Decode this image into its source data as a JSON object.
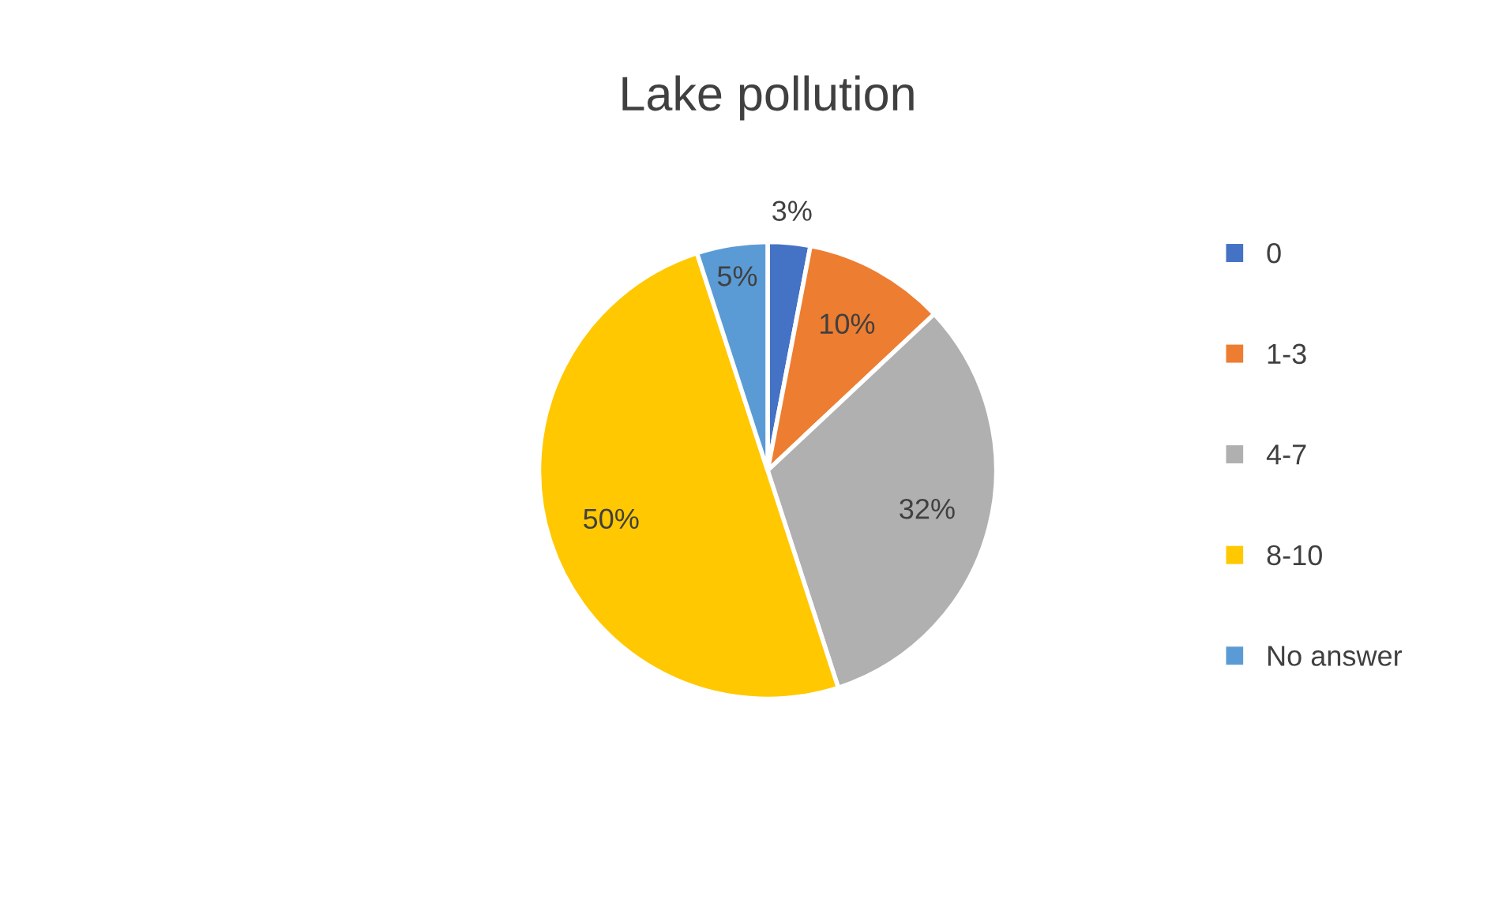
{
  "chart_data": {
    "type": "pie",
    "title": "Lake pollution",
    "categories": [
      "0",
      "1-3",
      "4-7",
      "8-10",
      "No answer"
    ],
    "values": [
      3,
      10,
      32,
      50,
      5
    ],
    "value_labels": [
      "3%",
      "10%",
      "32%",
      "50%",
      "5%"
    ],
    "colors": [
      "#4472c4",
      "#ed7d31",
      "#b0b0b0",
      "#ffc800",
      "#5b9bd5"
    ],
    "legend": "right"
  }
}
